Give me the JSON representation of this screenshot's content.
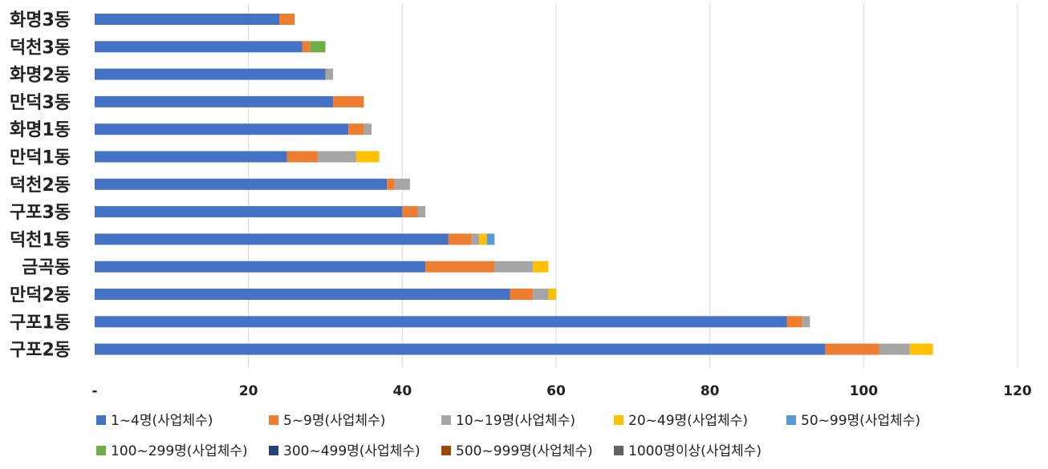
{
  "chart_data": {
    "type": "bar",
    "orientation": "horizontal",
    "stacked": true,
    "title": "",
    "xlabel": "",
    "ylabel": "",
    "xlim": [
      0,
      120
    ],
    "x_ticks": [
      0,
      20,
      40,
      60,
      80,
      100,
      120
    ],
    "x_tick_labels": [
      "-",
      "20",
      "40",
      "60",
      "80",
      "100",
      "120"
    ],
    "grid": "vertical",
    "legend_position": "bottom",
    "categories": [
      "화명3동",
      "덕천3동",
      "화명2동",
      "만덕3동",
      "화명1동",
      "만덕1동",
      "덕천2동",
      "구포3동",
      "덕천1동",
      "금곡동",
      "만덕2동",
      "구포1동",
      "구포2동"
    ],
    "series": [
      {
        "name": "1~4명(사업체수)",
        "color": "#4472C4",
        "values": [
          24,
          27,
          30,
          31,
          33,
          25,
          38,
          40,
          46,
          43,
          54,
          90,
          95
        ]
      },
      {
        "name": "5~9명(사업체수)",
        "color": "#ED7D31",
        "values": [
          2,
          1,
          0,
          4,
          2,
          4,
          1,
          2,
          3,
          9,
          3,
          2,
          7
        ]
      },
      {
        "name": "10~19명(사업체수)",
        "color": "#A5A5A5",
        "values": [
          0,
          0,
          1,
          0,
          1,
          5,
          2,
          1,
          1,
          5,
          2,
          1,
          4
        ]
      },
      {
        "name": "20~49명(사업체수)",
        "color": "#FFC000",
        "values": [
          0,
          0,
          0,
          0,
          0,
          3,
          0,
          0,
          1,
          2,
          1,
          0,
          3
        ]
      },
      {
        "name": "50~99명(사업체수)",
        "color": "#5B9BD5",
        "values": [
          0,
          0,
          0,
          0,
          0,
          0,
          0,
          0,
          1,
          0,
          0,
          0,
          0
        ]
      },
      {
        "name": "100~299명(사업체수)",
        "color": "#70AD47",
        "values": [
          0,
          2,
          0,
          0,
          0,
          0,
          0,
          0,
          0,
          0,
          0,
          0,
          0
        ]
      },
      {
        "name": "300~499명(사업체수)",
        "color": "#264478",
        "values": [
          0,
          0,
          0,
          0,
          0,
          0,
          0,
          0,
          0,
          0,
          0,
          0,
          0
        ]
      },
      {
        "name": "500~999명(사업체수)",
        "color": "#9E480E",
        "values": [
          0,
          0,
          0,
          0,
          0,
          0,
          0,
          0,
          0,
          0,
          0,
          0,
          0
        ]
      },
      {
        "name": "1000명이상(사업체수)",
        "color": "#636363",
        "values": [
          0,
          0,
          0,
          0,
          0,
          0,
          0,
          0,
          0,
          0,
          0,
          0,
          0
        ]
      }
    ]
  }
}
